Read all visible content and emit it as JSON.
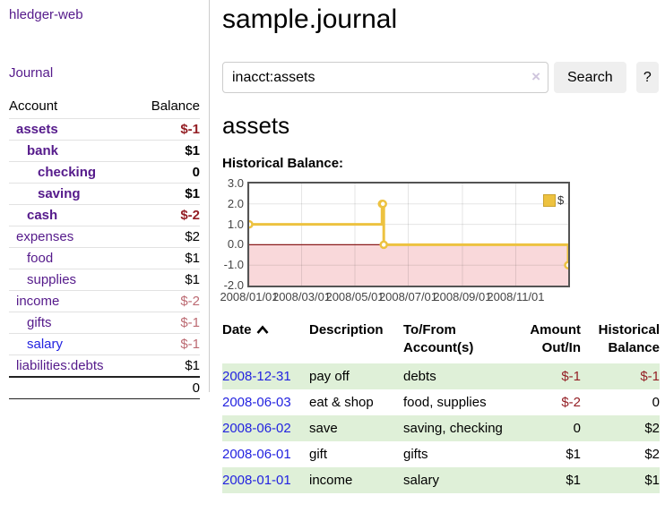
{
  "app_title": "hledger-web",
  "nav": {
    "journal": "Journal"
  },
  "accounts": {
    "header": {
      "account": "Account",
      "balance": "Balance"
    },
    "rows": [
      {
        "name": "assets",
        "balance": "$-1"
      },
      {
        "name": "bank",
        "balance": "$1"
      },
      {
        "name": "checking",
        "balance": "0"
      },
      {
        "name": "saving",
        "balance": "$1"
      },
      {
        "name": "cash",
        "balance": "$-2"
      },
      {
        "name": "expenses",
        "balance": "$2"
      },
      {
        "name": "food",
        "balance": "$1"
      },
      {
        "name": "supplies",
        "balance": "$1"
      },
      {
        "name": "income",
        "balance": "$-2"
      },
      {
        "name": "gifts",
        "balance": "$-1"
      },
      {
        "name": "salary",
        "balance": "$-1"
      },
      {
        "name": "liabilities:debts",
        "balance": "$1"
      }
    ],
    "total": "0"
  },
  "main": {
    "title": "sample.journal",
    "search": {
      "value": "inacct:assets",
      "clear": "×",
      "button": "Search",
      "help": "?"
    },
    "heading": "assets",
    "chart_title": "Historical Balance:"
  },
  "chart_data": {
    "type": "line",
    "title": "Historical Balance:",
    "series": [
      {
        "name": "$",
        "color": "#edc240",
        "step": true,
        "points": [
          [
            "2008-01-01",
            1
          ],
          [
            "2008-06-01",
            2
          ],
          [
            "2008-06-02",
            2
          ],
          [
            "2008-06-03",
            0
          ],
          [
            "2008-12-31",
            -1
          ]
        ]
      }
    ],
    "x_range": [
      "2008-01-01",
      "2008-12-31"
    ],
    "ylim": [
      -2,
      3
    ],
    "y_ticks": [
      {
        "label": "3.0",
        "value": 3
      },
      {
        "label": "2.0",
        "value": 2
      },
      {
        "label": "1.0",
        "value": 1
      },
      {
        "label": "0.0",
        "value": 0
      },
      {
        "label": "-1.0",
        "value": -1
      },
      {
        "label": "-2.0",
        "value": -2
      }
    ],
    "x_ticks": [
      {
        "label": "2008/01/01",
        "date": "2008-01-01"
      },
      {
        "label": "2008/03/01",
        "date": "2008-03-01"
      },
      {
        "label": "2008/05/01",
        "date": "2008-05-01"
      },
      {
        "label": "2008/07/01",
        "date": "2008-07-01"
      },
      {
        "label": "2008/09/01",
        "date": "2008-09-01"
      },
      {
        "label": "2008/11/01",
        "date": "2008-11-01"
      }
    ],
    "negative_region_fill": "#f9d8da",
    "zero_line_color": "#8b1a1a",
    "grid": true,
    "legend": {
      "label": "$",
      "position": "top-right"
    }
  },
  "register": {
    "headers": {
      "date": "Date",
      "description": "Description",
      "tofrom": "To/From Account(s)",
      "amount": "Amount Out/In",
      "balance": "Historical Balance"
    },
    "rows": [
      {
        "date": "2008-12-31",
        "description": "pay off",
        "accounts": "debts",
        "amount": "$-1",
        "balance": "$-1"
      },
      {
        "date": "2008-06-03",
        "description": "eat & shop",
        "accounts": "food, supplies",
        "amount": "$-2",
        "balance": "0"
      },
      {
        "date": "2008-06-02",
        "description": "save",
        "accounts": "saving, checking",
        "amount": "0",
        "balance": "$2"
      },
      {
        "date": "2008-06-01",
        "description": "gift",
        "accounts": "gifts",
        "amount": "$1",
        "balance": "$2"
      },
      {
        "date": "2008-01-01",
        "description": "income",
        "accounts": "salary",
        "amount": "$1",
        "balance": "$1"
      }
    ]
  },
  "colors": {
    "link_purple": "#551a8b",
    "link_blue": "#2323e0",
    "neg_strong": "#941f25",
    "neg_muted": "#bc6a72",
    "row_green": "#dff0d8",
    "series_gold": "#edc240",
    "chart_border": "#545454",
    "neg_region": "#f9d8da",
    "zero_line": "#8b1a1a",
    "button_bg": "#efefef",
    "divider": "#cccccc"
  }
}
